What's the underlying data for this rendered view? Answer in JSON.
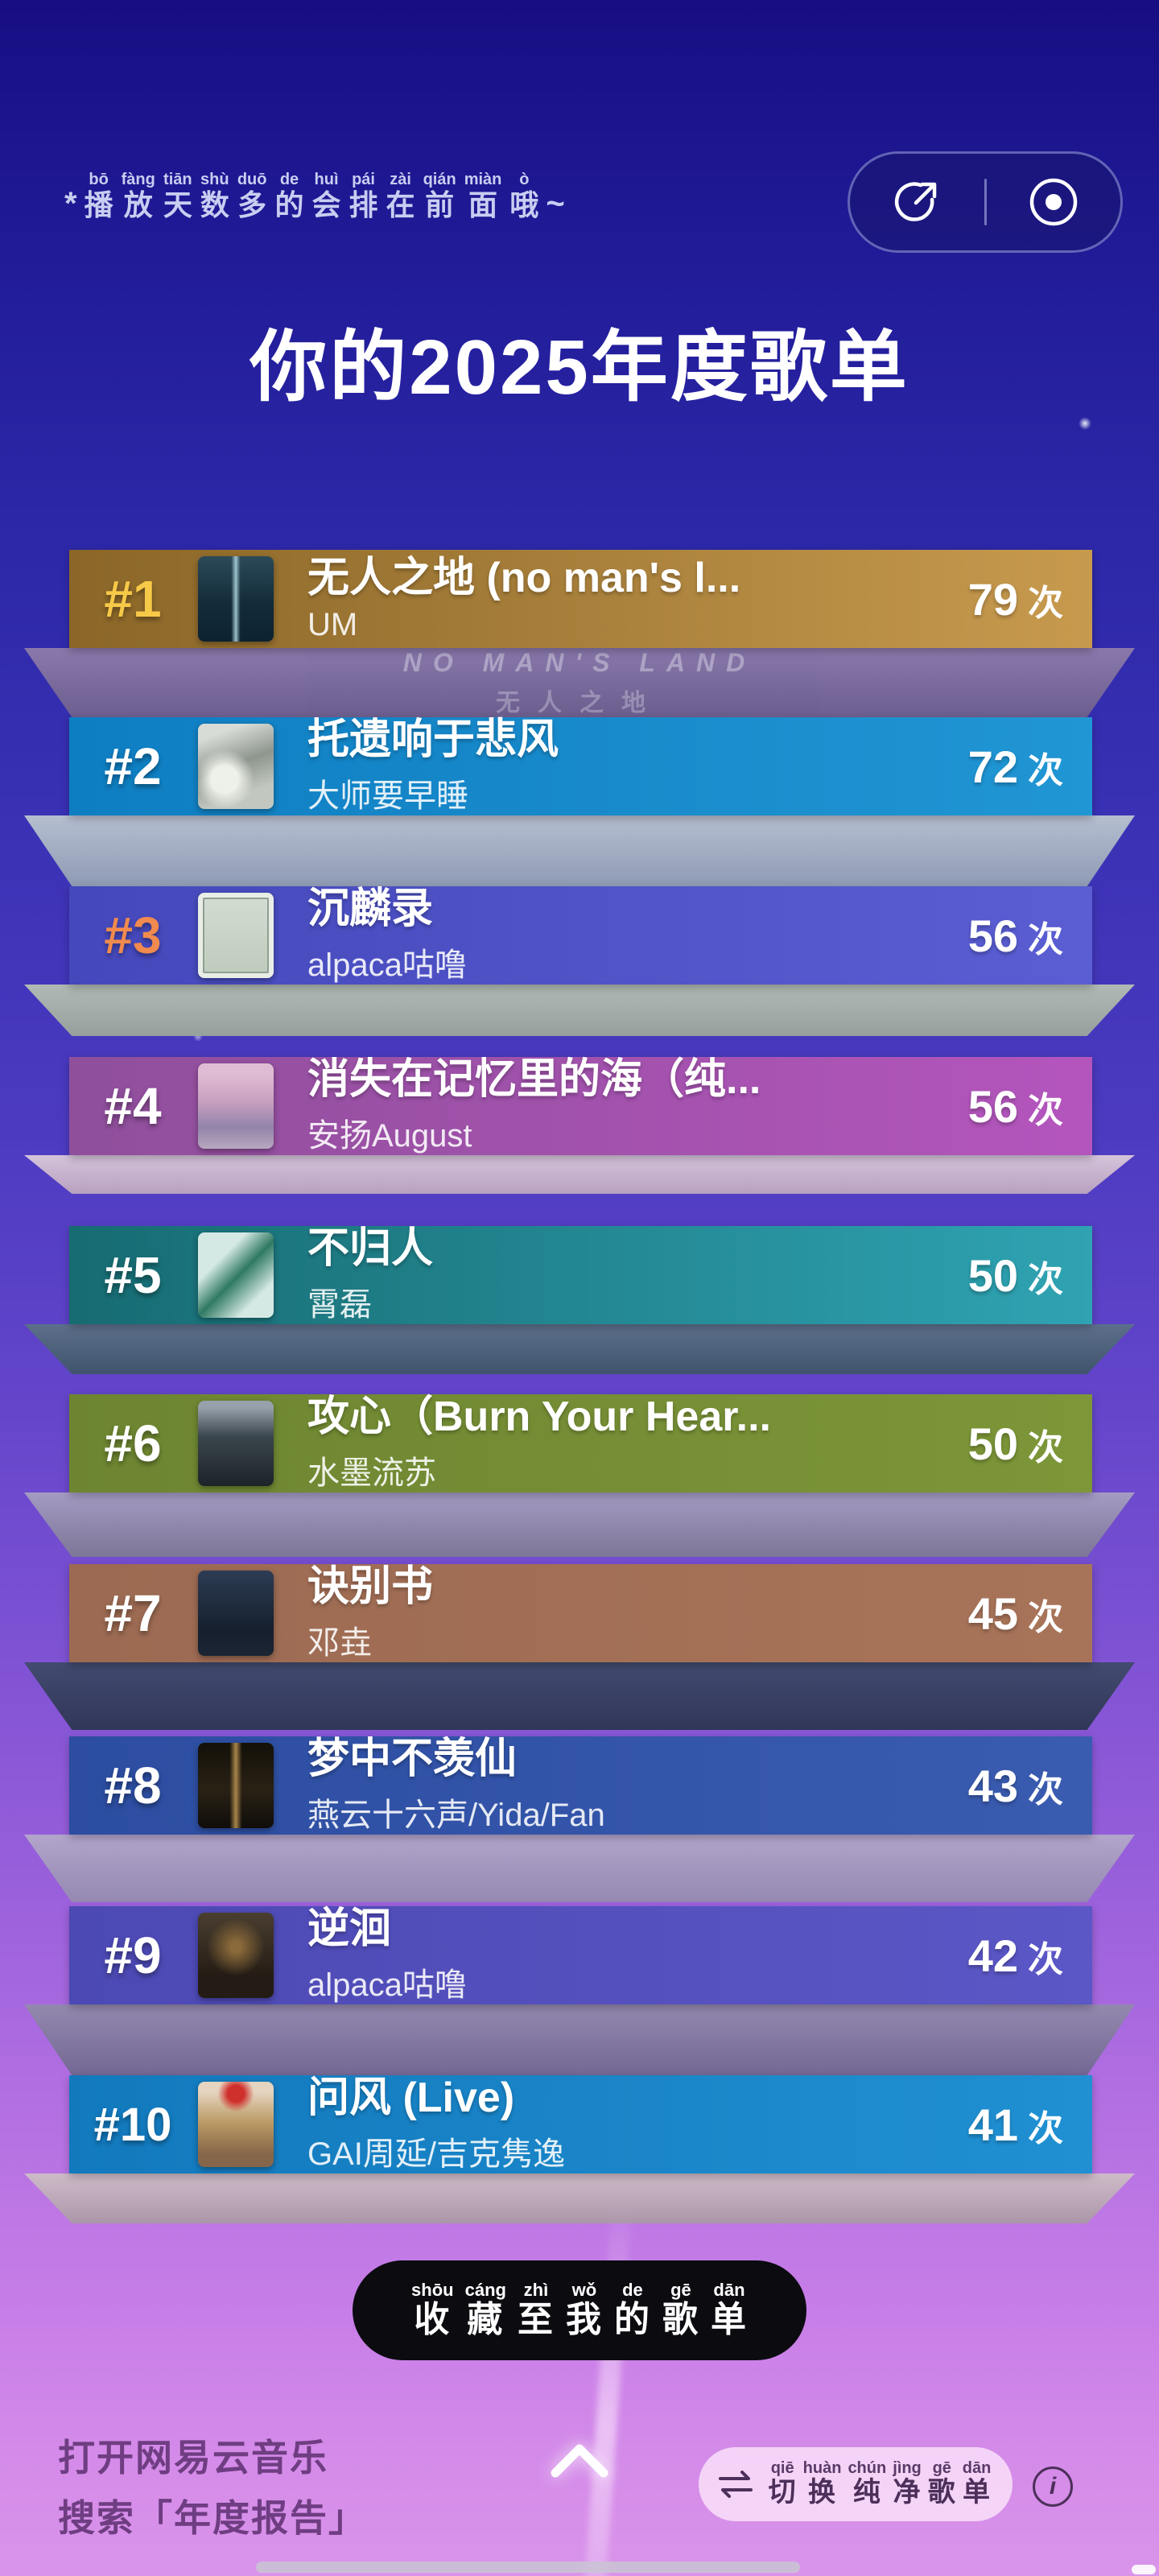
{
  "header": {
    "note_prefix": "*",
    "note_suffix": "~",
    "note_ruby": [
      [
        "bō",
        "播"
      ],
      [
        "fàng",
        "放"
      ],
      [
        "tiān",
        "天"
      ],
      [
        "shù",
        "数"
      ],
      [
        "duō",
        "多"
      ],
      [
        "de",
        "的"
      ],
      [
        "huì",
        "会"
      ],
      [
        "pái",
        "排"
      ],
      [
        "zài",
        "在"
      ],
      [
        "qián",
        "前"
      ],
      [
        "miàn",
        "面"
      ],
      [
        "ò",
        "哦"
      ]
    ],
    "title": "你的2025年度歌单"
  },
  "toolbar": {
    "share_icon": "share-icon",
    "disc_icon": "disc-icon"
  },
  "songs": [
    {
      "rank": "#1",
      "title": "无人之地 (no man's l...",
      "artist": "UM",
      "plays": "79",
      "unit": "次",
      "rank_color": "#f7c948",
      "bar": [
        "#8a6628",
        "#c79a4e"
      ],
      "band": [
        "#8f7cab",
        "#6f618d"
      ],
      "band_text_en": "NO MAN'S LAND",
      "band_text_cn": "无人之地"
    },
    {
      "rank": "#2",
      "title": "托遗响于悲风",
      "artist": "大师要早睡",
      "plays": "72",
      "unit": "次",
      "rank_color": "#ffffff",
      "bar": [
        "#0e7ec2",
        "#2196d4"
      ],
      "band": [
        "#bcc6d2",
        "#93a0b4"
      ]
    },
    {
      "rank": "#3",
      "title": "沉麟录",
      "artist": "alpaca咕噜",
      "plays": "56",
      "unit": "次",
      "rank_color": "#f08a4e",
      "bar": [
        "#4448bb",
        "#5a5ed2"
      ],
      "band": [
        "#b6c0b4",
        "#9aa69c"
      ]
    },
    {
      "rank": "#4",
      "title": "消失在记忆里的海（纯...",
      "artist": "安扬August",
      "plays": "56",
      "unit": "次",
      "rank_color": "#ffffff",
      "bar": [
        "#8f4f9b",
        "#b455bd"
      ],
      "band": [
        "#dccadc",
        "#bda6c0"
      ]
    },
    {
      "rank": "#5",
      "title": "不归人",
      "artist": "霄磊",
      "plays": "50",
      "unit": "次",
      "rank_color": "#ffffff",
      "bar": [
        "#176b72",
        "#2fa3b2"
      ],
      "band": [
        "#5d7288",
        "#3e5468"
      ]
    },
    {
      "rank": "#6",
      "title": "攻心（Burn Your Hear...",
      "artist": "水墨流苏",
      "plays": "50",
      "unit": "次",
      "rank_color": "#ffffff",
      "bar": [
        "#6d8531",
        "#7d9638"
      ],
      "band": [
        "#a79fc2",
        "#7d7894"
      ]
    },
    {
      "rank": "#7",
      "title": "诀别书",
      "artist": "邓垚",
      "plays": "45",
      "unit": "次",
      "rank_color": "#ffffff",
      "bar": [
        "#9c6a52",
        "#a87459"
      ],
      "band": [
        "#3f4a6b",
        "#2c3552"
      ]
    },
    {
      "rank": "#8",
      "title": "梦中不羡仙",
      "artist": "燕云十六声/Yida/Fan",
      "plays": "43",
      "unit": "次",
      "rank_color": "#ffffff",
      "bar": [
        "#2c4da1",
        "#3a5cb0"
      ],
      "band": [
        "#b4a8ca",
        "#948bb0"
      ]
    },
    {
      "rank": "#9",
      "title": "逆洄",
      "artist": "alpaca咕噜",
      "plays": "42",
      "unit": "次",
      "rank_color": "#ffffff",
      "bar": [
        "#4c49b4",
        "#5b57c6"
      ],
      "band": [
        "#938aac",
        "#6f6890"
      ]
    },
    {
      "rank": "#10",
      "title": "问风 (Live)",
      "artist": "GAI周延/吉克隽逸",
      "plays": "41",
      "unit": "次",
      "rank_color": "#ffffff",
      "bar": [
        "#1279bd",
        "#2090d2"
      ],
      "band": [
        "#cfbfc7",
        "#ab98a6"
      ]
    }
  ],
  "footer": {
    "collect_ruby": [
      [
        "shōu",
        "收"
      ],
      [
        "cáng",
        "藏"
      ],
      [
        "zhì",
        "至"
      ],
      [
        "wǒ",
        "我"
      ],
      [
        "de",
        "的"
      ],
      [
        "gē",
        "歌"
      ],
      [
        "dān",
        "单"
      ]
    ],
    "hint_line1": "打开网易云音乐",
    "hint_line2": "搜索「年度报告」",
    "switch_ruby": [
      [
        "qiē",
        "切"
      ],
      [
        "huàn",
        "换"
      ],
      [
        "chún",
        "纯"
      ],
      [
        "jìng",
        "净"
      ],
      [
        "gē",
        "歌"
      ],
      [
        "dān",
        "单"
      ]
    ],
    "info_label": "i"
  }
}
